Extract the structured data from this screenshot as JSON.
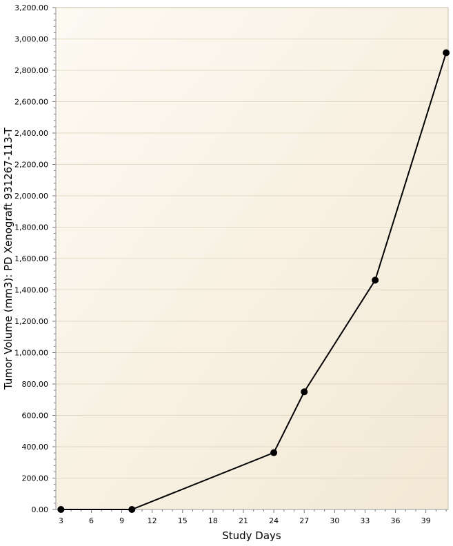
{
  "chart_data": {
    "type": "line",
    "title": "",
    "xlabel": "Study Days",
    "ylabel": "Tumor Volume (mm3): PD Xenograft 931267-113-T",
    "xlim": [
      2.5,
      41.2
    ],
    "ylim": [
      0,
      3200
    ],
    "x_ticks": [
      3,
      6,
      9,
      12,
      15,
      18,
      21,
      24,
      27,
      30,
      33,
      36,
      39
    ],
    "x_tick_labels": [
      "3",
      "6",
      "9",
      "12",
      "15",
      "18",
      "21",
      "24",
      "27",
      "30",
      "33",
      "36",
      "39"
    ],
    "y_ticks": [
      0,
      200,
      400,
      600,
      800,
      1000,
      1200,
      1400,
      1600,
      1800,
      2000,
      2200,
      2400,
      2600,
      2800,
      3000,
      3200
    ],
    "y_tick_labels": [
      "0.00",
      "200.00",
      "400.00",
      "600.00",
      "800.00",
      "1,000.00",
      "1,200.00",
      "1,400.00",
      "1,600.00",
      "1,800.00",
      "2,000.00",
      "2,200.00",
      "2,400.00",
      "2,600.00",
      "2,800.00",
      "3,000.00",
      "3,200.00"
    ],
    "grid": true,
    "legend": "none",
    "colors": {
      "background_start": "#fdfaf3",
      "background_end": "#f3e8d4",
      "line": "#000000",
      "marker": "#000000"
    },
    "series": [
      {
        "x": [
          3,
          10,
          24,
          27,
          34,
          41
        ],
        "y": [
          0,
          0,
          362,
          750,
          1462,
          2912
        ]
      }
    ]
  }
}
